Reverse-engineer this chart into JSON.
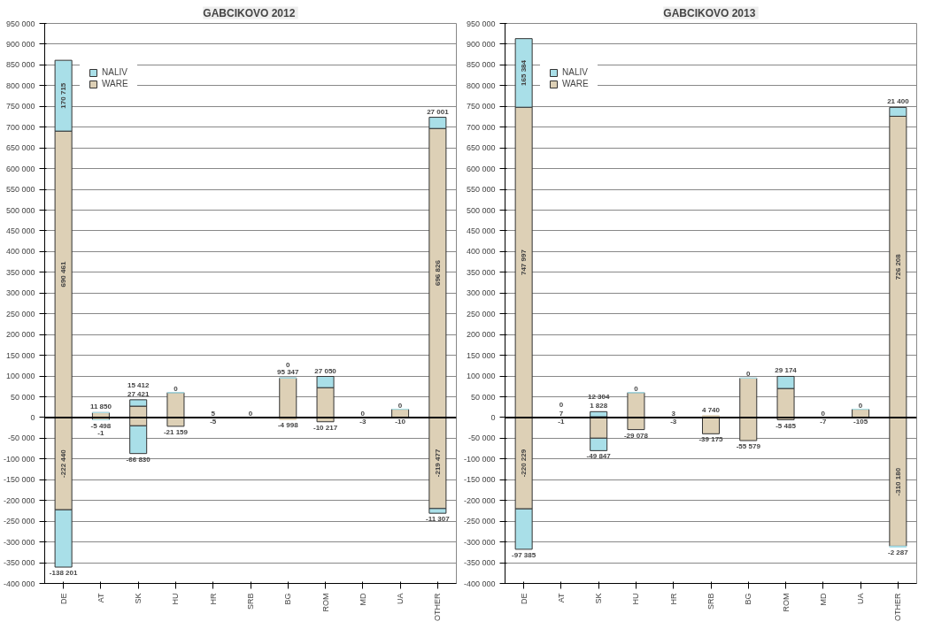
{
  "chart_data": [
    {
      "type": "bar",
      "title": "GABCIKOVO  2012",
      "stacked": true,
      "legend": "top left",
      "grid": "y",
      "categories": [
        "DE",
        "AT",
        "SK",
        "HU",
        "HR",
        "SRB",
        "BG",
        "ROM",
        "MD",
        "UA",
        "OTHER"
      ],
      "ylim": [
        -400000,
        950000
      ],
      "yticks": [
        {
          "value": -400000,
          "label": "-400 000"
        },
        {
          "value": -350000,
          "label": "-350 000"
        },
        {
          "value": -300000,
          "label": "-300 000"
        },
        {
          "value": -250000,
          "label": "-250 000"
        },
        {
          "value": -200000,
          "label": "-200 000"
        },
        {
          "value": -150000,
          "label": "-150 000"
        },
        {
          "value": -100000,
          "label": "-100 000"
        },
        {
          "value": -50000,
          "label": "-50 000"
        },
        {
          "value": 0,
          "label": "0"
        },
        {
          "value": 50000,
          "label": "50 000"
        },
        {
          "value": 100000,
          "label": "100 000"
        },
        {
          "value": 150000,
          "label": "150 000"
        },
        {
          "value": 200000,
          "label": "200 000"
        },
        {
          "value": 250000,
          "label": "250 000"
        },
        {
          "value": 300000,
          "label": "300 000"
        },
        {
          "value": 350000,
          "label": "350 000"
        },
        {
          "value": 400000,
          "label": "400 000"
        },
        {
          "value": 450000,
          "label": "450 000"
        },
        {
          "value": 500000,
          "label": "500 000"
        },
        {
          "value": 550000,
          "label": "550 000"
        },
        {
          "value": 600000,
          "label": "600 000"
        },
        {
          "value": 650000,
          "label": "650 000"
        },
        {
          "value": 700000,
          "label": "700 000"
        },
        {
          "value": 750000,
          "label": "750 000"
        },
        {
          "value": 800000,
          "label": "800 000"
        },
        {
          "value": 850000,
          "label": "850 000"
        },
        {
          "value": 900000,
          "label": "900 000"
        },
        {
          "value": 950000,
          "label": "950 000"
        }
      ],
      "series": [
        {
          "name": "WARE",
          "color": "#ddd0b6",
          "values": [
            690461,
            11850,
            27421,
            60000,
            5,
            0,
            95347,
            72000,
            0,
            20000,
            696826
          ],
          "value_labels": [
            "690 461",
            "11 850",
            "27 421",
            null,
            "5",
            "0",
            "95 347",
            null,
            "0",
            null,
            "696 826"
          ]
        },
        {
          "name": "NALIV",
          "color": "#a9dfe8",
          "values": [
            170715,
            0,
            15412,
            0,
            0,
            null,
            0,
            27050,
            null,
            0,
            27001
          ],
          "value_labels": [
            "170 715",
            null,
            "15 412",
            "0",
            null,
            null,
            "0",
            "27 050",
            null,
            "0",
            "27 001"
          ]
        },
        {
          "color": "#ddd0b6",
          "values": [
            -222440,
            -5498,
            -20000,
            -21159,
            -5,
            null,
            -4998,
            -10217,
            -3,
            -10,
            -219477
          ],
          "value_labels": [
            "-222 440",
            "-5 498",
            null,
            "-21 159",
            "-5",
            null,
            "-4 998",
            "-10 217",
            "-3",
            "-10",
            "-219 477"
          ]
        },
        {
          "color": "#a9dfe8",
          "values": [
            -138201,
            -1,
            -66830,
            null,
            null,
            null,
            null,
            null,
            null,
            null,
            -11307
          ],
          "value_labels": [
            "-138 201",
            "-1",
            "-66 830",
            null,
            null,
            null,
            null,
            null,
            null,
            null,
            "-11 307"
          ]
        }
      ]
    },
    {
      "type": "bar",
      "title": "GABCIKOVO  2013",
      "stacked": true,
      "legend": "top left",
      "grid": "y",
      "categories": [
        "DE",
        "AT",
        "SK",
        "HU",
        "HR",
        "SRB",
        "BG",
        "ROM",
        "MD",
        "UA",
        "OTHER"
      ],
      "ylim": [
        -400000,
        950000
      ],
      "yticks": [
        {
          "value": -400000,
          "label": "-400 000"
        },
        {
          "value": -350000,
          "label": "-350 000"
        },
        {
          "value": -300000,
          "label": "-300 000"
        },
        {
          "value": -250000,
          "label": "-250 000"
        },
        {
          "value": -200000,
          "label": "-200 000"
        },
        {
          "value": -150000,
          "label": "-150 000"
        },
        {
          "value": -100000,
          "label": "-100 000"
        },
        {
          "value": -50000,
          "label": "-50 000"
        },
        {
          "value": 0,
          "label": "0"
        },
        {
          "value": 50000,
          "label": "50 000"
        },
        {
          "value": 100000,
          "label": "100 000"
        },
        {
          "value": 150000,
          "label": "150 000"
        },
        {
          "value": 200000,
          "label": "200 000"
        },
        {
          "value": 250000,
          "label": "250 000"
        },
        {
          "value": 300000,
          "label": "300 000"
        },
        {
          "value": 350000,
          "label": "350 000"
        },
        {
          "value": 400000,
          "label": "400 000"
        },
        {
          "value": 450000,
          "label": "450 000"
        },
        {
          "value": 500000,
          "label": "500 000"
        },
        {
          "value": 550000,
          "label": "550 000"
        },
        {
          "value": 600000,
          "label": "600 000"
        },
        {
          "value": 650000,
          "label": "650 000"
        },
        {
          "value": 700000,
          "label": "700 000"
        },
        {
          "value": 750000,
          "label": "750 000"
        },
        {
          "value": 800000,
          "label": "800 000"
        },
        {
          "value": 850000,
          "label": "850 000"
        },
        {
          "value": 900000,
          "label": "900 000"
        },
        {
          "value": 950000,
          "label": "950 000"
        }
      ],
      "series": [
        {
          "name": "WARE",
          "color": "#ddd0b6",
          "values": [
            747997,
            7,
            1828,
            60000,
            3,
            4740,
            95000,
            70000,
            0,
            20000,
            726208
          ],
          "value_labels": [
            "747 997",
            "7",
            "1 828",
            null,
            "3",
            "4 740",
            null,
            null,
            "0",
            null,
            "726 208"
          ]
        },
        {
          "name": "NALIV",
          "color": "#a9dfe8",
          "values": [
            165384,
            0,
            12304,
            0,
            null,
            null,
            0,
            29174,
            null,
            0,
            21400
          ],
          "value_labels": [
            "165 384",
            "0",
            "12 304",
            "0",
            null,
            null,
            "0",
            "29 174",
            null,
            "0",
            "21 400"
          ]
        },
        {
          "color": "#ddd0b6",
          "values": [
            -220229,
            -1,
            -49847,
            -29078,
            -3,
            -39175,
            -55579,
            -5485,
            -7,
            -105,
            -310180
          ],
          "value_labels": [
            "-220 229",
            "-1",
            "-49 847",
            "-29 078",
            "-3",
            "-39 175",
            "-55 579",
            "-5 485",
            "-7",
            "-105",
            "-310 180"
          ]
        },
        {
          "color": "#a9dfe8",
          "values": [
            -97385,
            null,
            -30000,
            null,
            null,
            null,
            null,
            null,
            null,
            null,
            -2287
          ],
          "value_labels": [
            "-97 385",
            null,
            null,
            null,
            null,
            null,
            null,
            null,
            null,
            null,
            "-2 287"
          ]
        }
      ]
    }
  ]
}
